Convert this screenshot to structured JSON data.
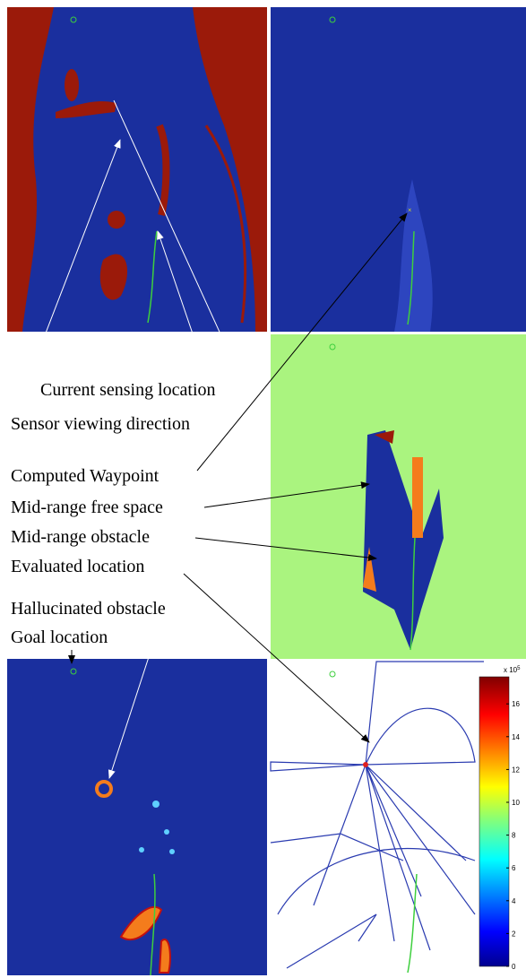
{
  "annotations": {
    "current_sensing_location": "Current sensing location",
    "sensor_viewing_direction": "Sensor viewing direction",
    "computed_waypoint": "Computed Waypoint",
    "mid_range_free_space": "Mid-range free space",
    "mid_range_obstacle": "Mid-range obstacle",
    "evaluated_location": "Evaluated location",
    "hallucinated_obstacle": "Hallucinated obstacle",
    "goal_location": "Goal location"
  },
  "colorbar": {
    "multiplier": {
      "base": "x 10",
      "exponent": "5"
    },
    "ticks": [
      0,
      2,
      4,
      6,
      8,
      10,
      12,
      14,
      16
    ]
  }
}
